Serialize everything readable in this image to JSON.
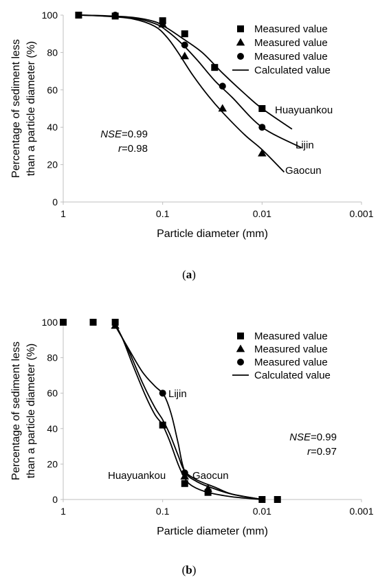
{
  "chart_data": [
    {
      "panel": "a",
      "caption": "(a)",
      "caption_bold": "a",
      "type": "scatter",
      "xlabel": "Particle diameter (mm)",
      "ylabel": "Percentage of sediment less than a particle diameter (%)",
      "ylabel_lines": [
        "Percentage of sediment less",
        "than a particle diameter (%)"
      ],
      "x_scale": "log",
      "x_reversed": true,
      "xlim": [
        1,
        0.001
      ],
      "ylim": [
        0,
        100
      ],
      "x_ticks": [
        1,
        0.1,
        0.01,
        0.001
      ],
      "x_tick_labels": [
        "1",
        "0.1",
        "0.01",
        "0.001"
      ],
      "y_ticks": [
        0,
        20,
        40,
        60,
        80,
        100
      ],
      "y_tick_labels": [
        "0",
        "20",
        "40",
        "60",
        "80",
        "100"
      ],
      "grid": false,
      "legend_position": "top-right",
      "legend": [
        {
          "label": "Measured value",
          "marker": "square"
        },
        {
          "label": "Measured value",
          "marker": "triangle"
        },
        {
          "label": "Measured value",
          "marker": "circle"
        },
        {
          "label": "Calculated value",
          "marker": "line"
        }
      ],
      "annotations": [
        {
          "italic": "NSE",
          "text": "=0.99"
        },
        {
          "italic": "r",
          "text": "=0.98"
        }
      ],
      "series": [
        {
          "name": "Huayuankou",
          "marker": "square",
          "measured": {
            "x": [
              0.7,
              0.3,
              0.1,
              0.06,
              0.03,
              0.01
            ],
            "y": [
              100,
              99.5,
              97,
              90,
              72,
              50
            ]
          },
          "calculated": {
            "x": [
              0.7,
              0.4,
              0.2,
              0.12,
              0.09,
              0.065,
              0.04,
              0.025,
              0.015,
              0.01,
              0.005
            ],
            "y": [
              100,
              99.7,
              98.8,
              96.5,
              93,
              88,
              80,
              69,
              58,
              50,
              39
            ]
          }
        },
        {
          "name": "Lijin",
          "marker": "circle",
          "measured": {
            "x": [
              0.3,
              0.1,
              0.06,
              0.025,
              0.01
            ],
            "y": [
              100,
              96,
              84,
              62,
              40
            ]
          },
          "calculated": {
            "x": [
              0.7,
              0.4,
              0.2,
              0.12,
              0.09,
              0.065,
              0.045,
              0.03,
              0.02,
              0.01,
              0.004
            ],
            "y": [
              100,
              99.6,
              98.5,
              95.5,
              91.5,
              85,
              76,
              65,
              56,
              40,
              29
            ]
          }
        },
        {
          "name": "Gaocun",
          "marker": "triangle",
          "measured": {
            "x": [
              0.1,
              0.06,
              0.025,
              0.01
            ],
            "y": [
              95,
              78,
              50,
              26
            ]
          },
          "calculated": {
            "x": [
              0.7,
              0.4,
              0.2,
              0.12,
              0.09,
              0.07,
              0.05,
              0.035,
              0.025,
              0.015,
              0.01,
              0.006
            ],
            "y": [
              100,
              99.5,
              98,
              94,
              88,
              80,
              68,
              57,
              48,
              36,
              28,
              16
            ]
          }
        }
      ]
    },
    {
      "panel": "b",
      "caption": "(b)",
      "caption_bold": "b",
      "type": "scatter",
      "xlabel": "Particle diameter (mm)",
      "ylabel": "Percentage of sediment less than a particle diameter (%)",
      "ylabel_lines": [
        "Percentage of sediment less",
        "than a particle diameter (%)"
      ],
      "x_scale": "log",
      "x_reversed": true,
      "xlim": [
        1,
        0.001
      ],
      "ylim": [
        0,
        100
      ],
      "x_ticks": [
        1,
        0.1,
        0.01,
        0.001
      ],
      "x_tick_labels": [
        "1",
        "0.1",
        "0.01",
        "0.001"
      ],
      "y_ticks": [
        0,
        20,
        40,
        60,
        80,
        100
      ],
      "y_tick_labels": [
        "0",
        "20",
        "40",
        "60",
        "80",
        "100"
      ],
      "grid": false,
      "legend_position": "top-right",
      "legend": [
        {
          "label": "Measured value",
          "marker": "square"
        },
        {
          "label": "Measured value",
          "marker": "triangle"
        },
        {
          "label": "Measured value",
          "marker": "circle"
        },
        {
          "label": "Calculated value",
          "marker": "line"
        }
      ],
      "annotations": [
        {
          "italic": "NSE",
          "text": "=0.99"
        },
        {
          "italic": "r",
          "text": "=0.97"
        }
      ],
      "series": [
        {
          "name": "Huayuankou",
          "marker": "square",
          "measured": {
            "x": [
              1,
              0.5,
              0.3,
              0.1,
              0.06,
              0.035,
              0.01,
              0.007
            ],
            "y": [
              100,
              100,
              100,
              42,
              9,
              4,
              0,
              0
            ]
          },
          "calculated": {
            "x": [
              0.3,
              0.25,
              0.2,
              0.15,
              0.12,
              0.1,
              0.085,
              0.07,
              0.06,
              0.05,
              0.035,
              0.02,
              0.01
            ],
            "y": [
              99,
              90,
              76,
              59,
              48,
              42,
              33,
              20,
              12,
              7.5,
              4,
              1.5,
              0
            ]
          }
        },
        {
          "name": "Lijin",
          "marker": "circle",
          "measured": {
            "x": [
              0.1,
              0.06
            ],
            "y": [
              60,
              15
            ]
          },
          "calculated": {
            "x": [
              0.3,
              0.22,
              0.16,
              0.12,
              0.1,
              0.09,
              0.08,
              0.07,
              0.06,
              0.045,
              0.03,
              0.02,
              0.01
            ],
            "y": [
              98,
              85,
              72,
              64,
              60,
              55,
              46,
              32,
              16,
              10,
              6,
              3,
              0
            ]
          }
        },
        {
          "name": "Gaocun",
          "marker": "triangle",
          "measured": {
            "x": [
              0.3,
              0.06,
              0.035
            ],
            "y": [
              98,
              13,
              6
            ]
          },
          "calculated": {
            "x": [
              0.3,
              0.22,
              0.16,
              0.12,
              0.1,
              0.085,
              0.07,
              0.06,
              0.045,
              0.03,
              0.02,
              0.01
            ],
            "y": [
              99,
              84,
              66,
              52,
              45,
              37,
              25,
              16,
              11,
              7,
              3,
              0
            ]
          }
        }
      ]
    }
  ]
}
